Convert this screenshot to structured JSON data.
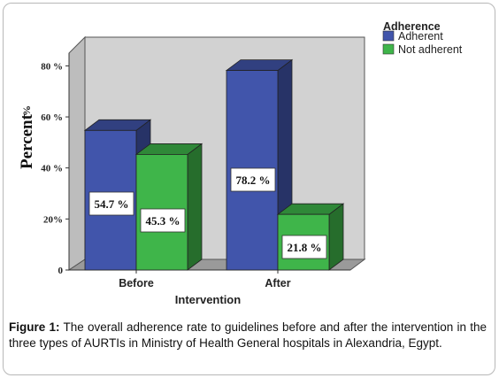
{
  "caption": {
    "label": "Figure 1:",
    "text": "The overall adherence rate to guidelines before and after the intervention in the three types of AURTIs in Ministry of Health General hospitals in Alexandria, Egypt."
  },
  "chart_data": {
    "type": "bar",
    "title": "",
    "xlabel": "Intervention",
    "ylabel": "Percent",
    "categories": [
      "Before",
      "After"
    ],
    "ylim": [
      0,
      85
    ],
    "yticks": [
      "0",
      "20%",
      "40 %",
      "60 %",
      "80 %"
    ],
    "ytick_values": [
      0,
      20,
      40,
      60,
      80
    ],
    "legend": {
      "title": "Adherence",
      "placement": "top-right"
    },
    "series": [
      {
        "name": "Adherent",
        "color": "#4155ab",
        "values": [
          54.7,
          78.2
        ],
        "labels": [
          "54.7 %",
          "78.2 %"
        ]
      },
      {
        "name": "Not adherent",
        "color": "#3fb54a",
        "values": [
          45.3,
          21.8
        ],
        "labels": [
          "45.3 %",
          "21.8 %"
        ]
      }
    ],
    "grid": false,
    "three_d": true
  }
}
